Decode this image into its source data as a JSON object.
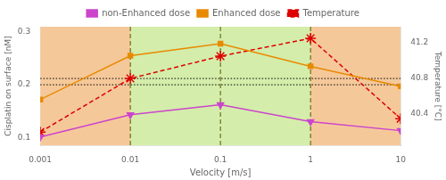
{
  "chart_data": {
    "type": "line",
    "x_label": "Velocity [m/s]",
    "y_label": "Cisplatin on surface [nM]",
    "y2_label": "Temperature [°C]",
    "x": [
      0.001,
      0.01,
      0.1,
      1,
      10
    ],
    "series": [
      {
        "name": "non-Enhanced dose",
        "color": "#cc44cc",
        "marker": "triangle_down",
        "line_style": "solid",
        "values": [
          0.101,
          0.143,
          0.162,
          0.13,
          0.113
        ]
      },
      {
        "name": "Enhanced dose",
        "color": "#e88a00",
        "marker": "square",
        "line_style": "solid",
        "values": [
          0.172,
          0.255,
          0.278,
          0.235,
          0.197
        ]
      },
      {
        "name": "Temperature",
        "color": "#dd0000",
        "marker": "star",
        "line_style": "dashed",
        "axis": "y2",
        "values": [
          40.2,
          40.8,
          41.05,
          41.25,
          40.35
        ]
      }
    ],
    "log": "x",
    "xlim": [
      0.001,
      10
    ],
    "xticks": [
      0.001,
      0.01,
      0.1,
      1,
      10
    ],
    "ylim": [
      0.085,
      0.31
    ],
    "yticks": [
      0.1,
      0.2,
      0.3
    ],
    "y2lim": [
      40.05,
      41.38
    ],
    "y2ticks": [
      40.4,
      40.8,
      41.2
    ],
    "grid": false,
    "legend": "top",
    "bands": [
      {
        "x": [
          0.001,
          10
        ],
        "color": "#f5c89a"
      },
      {
        "x": [
          0.01,
          1.0
        ],
        "color": "#d4edaa"
      }
    ],
    "vlines": [
      {
        "x": 0.01,
        "color": "#555500",
        "line_style": "dashed"
      },
      {
        "x": 0.1,
        "color": "#555500",
        "line_style": "dashed"
      },
      {
        "x": 1,
        "color": "#555500",
        "line_style": "dashed"
      }
    ],
    "hlines": [
      {
        "y": 0.2,
        "color": "#000000",
        "line_style": "dotted"
      },
      {
        "y": 40.8,
        "axis": "y2",
        "color": "#000000",
        "line_style": "dotted"
      }
    ]
  }
}
